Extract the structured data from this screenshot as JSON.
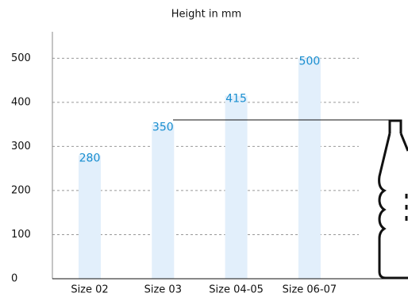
{
  "chart_data": {
    "type": "bar",
    "title": "Height in mm",
    "categories": [
      "Size 02",
      "Size 03",
      "Size 04-05",
      "Size 06-07"
    ],
    "values": [
      280,
      350,
      415,
      500
    ],
    "color": "#e2effb",
    "label_color": "#1a8fd0",
    "ylim": [
      0,
      560
    ],
    "yticks": [
      0,
      100,
      200,
      300,
      400,
      500
    ],
    "grid": true
  }
}
